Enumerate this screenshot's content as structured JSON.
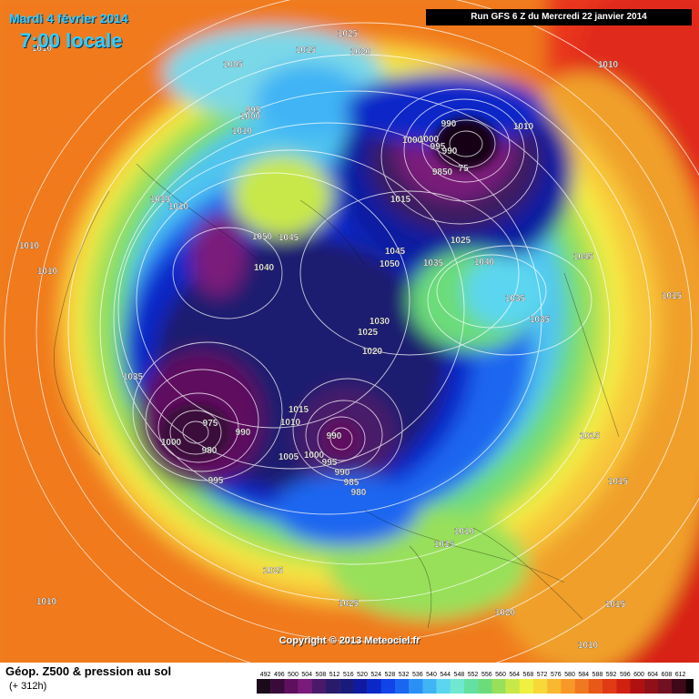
{
  "header": {
    "date": "Mardi 4 février 2014",
    "time": "7:00 locale",
    "run": "Run GFS 6 Z du Mercredi 22 janvier 2014"
  },
  "footer": {
    "title": "Géop. Z500 & pression au sol",
    "subtitle": "(+ 312h)",
    "copyright": "Copyright © 2013 Meteociel.fr"
  },
  "legend": {
    "ticks": [
      "492",
      "496",
      "500",
      "504",
      "508",
      "512",
      "516",
      "520",
      "524",
      "528",
      "532",
      "536",
      "540",
      "544",
      "548",
      "552",
      "556",
      "560",
      "564",
      "568",
      "572",
      "576",
      "580",
      "584",
      "588",
      "592",
      "596",
      "600",
      "604",
      "608",
      "612"
    ],
    "colors": [
      "#1a0a1a",
      "#3a0a3a",
      "#5e0f5e",
      "#7a1a7a",
      "#4a1a6a",
      "#2a1a6a",
      "#1a1a7a",
      "#101aa0",
      "#0a28c8",
      "#1044e8",
      "#1a66f0",
      "#2a90f5",
      "#40b4f5",
      "#5cd6f0",
      "#70e8d0",
      "#64e0a0",
      "#6cdc7a",
      "#98e05a",
      "#c8e84a",
      "#f0f040",
      "#f8d838",
      "#f8b830",
      "#f89828",
      "#f07820",
      "#e85818",
      "#e03a14",
      "#d02010",
      "#b01010",
      "#901018",
      "#701020",
      "#400818",
      "#100008"
    ]
  },
  "pressure_labels": [
    {
      "t": "1010"
    },
    {
      "t": "1015"
    },
    {
      "t": "1025"
    },
    {
      "t": "1020"
    },
    {
      "t": "1005"
    },
    {
      "t": "995"
    },
    {
      "t": "1000"
    },
    {
      "t": "1010"
    },
    {
      "t": "1000"
    },
    {
      "t": "990"
    },
    {
      "t": "1010"
    },
    {
      "t": "1000"
    },
    {
      "t": "995"
    },
    {
      "t": "990"
    },
    {
      "t": "9850"
    },
    {
      "t": "75"
    },
    {
      "t": "1010"
    },
    {
      "t": "1015"
    },
    {
      "t": "1010"
    },
    {
      "t": "1010"
    },
    {
      "t": "1010"
    },
    {
      "t": "1050"
    },
    {
      "t": "1045"
    },
    {
      "t": "1040"
    },
    {
      "t": "1045"
    },
    {
      "t": "1050"
    },
    {
      "t": "1035"
    },
    {
      "t": "1015"
    },
    {
      "t": "1025"
    },
    {
      "t": "1040"
    },
    {
      "t": "1045"
    },
    {
      "t": "1035"
    },
    {
      "t": "1035"
    },
    {
      "t": "1015"
    },
    {
      "t": "1030"
    },
    {
      "t": "1025"
    },
    {
      "t": "1020"
    },
    {
      "t": "1035"
    },
    {
      "t": "975"
    },
    {
      "t": "990"
    },
    {
      "t": "1000"
    },
    {
      "t": "980"
    },
    {
      "t": "995"
    },
    {
      "t": "1015"
    },
    {
      "t": "1010"
    },
    {
      "t": "1005"
    },
    {
      "t": "1000"
    },
    {
      "t": "995"
    },
    {
      "t": "990"
    },
    {
      "t": "990"
    },
    {
      "t": "985"
    },
    {
      "t": "980"
    },
    {
      "t": "1015"
    },
    {
      "t": "1015"
    },
    {
      "t": "1010"
    },
    {
      "t": "1015"
    },
    {
      "t": "1025"
    },
    {
      "t": "1010"
    },
    {
      "t": "1025"
    },
    {
      "t": "1020"
    },
    {
      "t": "1015"
    },
    {
      "t": "1010"
    }
  ]
}
